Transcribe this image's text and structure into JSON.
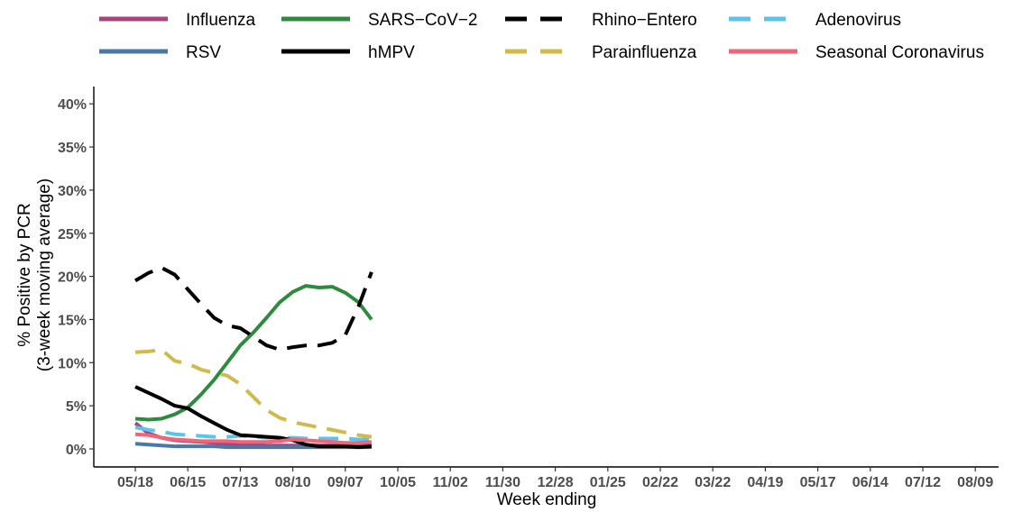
{
  "chart_data": {
    "type": "line",
    "title": "",
    "xlabel": "Week ending",
    "ylabel_line1": "% Positive by PCR",
    "ylabel_line2": "(3-week moving average)",
    "ylim": [
      0,
      41
    ],
    "yticks": [
      0,
      5,
      10,
      15,
      20,
      25,
      30,
      35,
      40
    ],
    "ytick_labels": [
      "0%",
      "5%",
      "10%",
      "15%",
      "20%",
      "25%",
      "30%",
      "35%",
      "40%"
    ],
    "xlim": [
      0,
      68
    ],
    "xtick_positions": [
      0,
      4,
      8,
      12,
      16,
      20,
      24,
      28,
      32,
      36,
      40,
      44,
      48,
      52,
      56,
      60,
      64
    ],
    "xtick_labels": [
      "05/18",
      "06/15",
      "07/13",
      "08/10",
      "09/07",
      "10/05",
      "11/02",
      "11/30",
      "12/28",
      "01/25",
      "02/22",
      "03/22",
      "04/19",
      "05/17",
      "06/14",
      "07/12",
      "08/09"
    ],
    "x": [
      "05/18",
      "05/25",
      "06/01",
      "06/08",
      "06/15",
      "06/22",
      "06/29",
      "07/06",
      "07/13",
      "07/20",
      "07/27",
      "08/03",
      "08/10",
      "08/17",
      "08/24",
      "08/31",
      "09/07",
      "09/14",
      "09/21"
    ],
    "legend_position": "top",
    "grid": false,
    "series": [
      {
        "name": "Influenza",
        "color": "#a8437f",
        "dash": "solid",
        "values": [
          3.0,
          1.8,
          1.3,
          1.0,
          0.9,
          0.8,
          0.7,
          0.6,
          0.5,
          0.5,
          0.4,
          0.4,
          0.4,
          0.4,
          0.4,
          0.4,
          0.4,
          0.4,
          0.4
        ]
      },
      {
        "name": "SARS−CoV−2",
        "color": "#2e8b3e",
        "dash": "solid",
        "values": [
          3.5,
          3.4,
          3.5,
          4.0,
          4.8,
          6.3,
          8.0,
          10.0,
          12.0,
          13.5,
          15.2,
          17.0,
          18.2,
          18.9,
          18.7,
          18.8,
          18.1,
          17.0,
          15.0
        ]
      },
      {
        "name": "Rhino−Entero",
        "color": "#000000",
        "dash": "dashed",
        "values": [
          19.5,
          20.4,
          21.0,
          20.2,
          18.5,
          16.8,
          15.2,
          14.3,
          14.0,
          13.0,
          12.0,
          11.5,
          11.8,
          12.0,
          12.0,
          12.3,
          13.2,
          16.5,
          20.5
        ]
      },
      {
        "name": "Adenovirus",
        "color": "#5bc4ee",
        "dash": "dashed",
        "values": [
          2.5,
          2.2,
          2.0,
          1.7,
          1.6,
          1.5,
          1.4,
          1.4,
          1.5,
          1.4,
          1.3,
          1.3,
          1.3,
          1.2,
          1.2,
          1.2,
          1.2,
          1.1,
          1.1
        ]
      },
      {
        "name": "RSV",
        "color": "#4a78a8",
        "dash": "solid",
        "values": [
          0.6,
          0.5,
          0.4,
          0.3,
          0.3,
          0.3,
          0.3,
          0.2,
          0.2,
          0.2,
          0.2,
          0.2,
          0.2,
          0.2,
          0.2,
          0.2,
          0.2,
          0.2,
          0.2
        ]
      },
      {
        "name": "hMPV",
        "color": "#000000",
        "dash": "solid",
        "values": [
          7.2,
          6.5,
          5.8,
          5.0,
          4.7,
          3.8,
          3.0,
          2.2,
          1.6,
          1.5,
          1.4,
          1.3,
          1.0,
          0.5,
          0.3,
          0.3,
          0.3,
          0.2,
          0.3
        ]
      },
      {
        "name": "Parainfluenza",
        "color": "#d1b94a",
        "dash": "dashed",
        "values": [
          11.2,
          11.3,
          11.5,
          10.2,
          9.9,
          9.2,
          8.8,
          8.5,
          7.5,
          6.0,
          4.5,
          3.6,
          3.1,
          2.8,
          2.5,
          2.2,
          1.9,
          1.6,
          1.4
        ]
      },
      {
        "name": "Seasonal Coronavirus",
        "color": "#ee6677",
        "dash": "solid",
        "values": [
          1.7,
          1.6,
          1.3,
          1.1,
          1.0,
          0.9,
          0.9,
          0.9,
          0.8,
          0.8,
          0.8,
          0.9,
          1.1,
          1.0,
          0.9,
          0.8,
          0.7,
          0.7,
          0.8
        ]
      }
    ]
  }
}
